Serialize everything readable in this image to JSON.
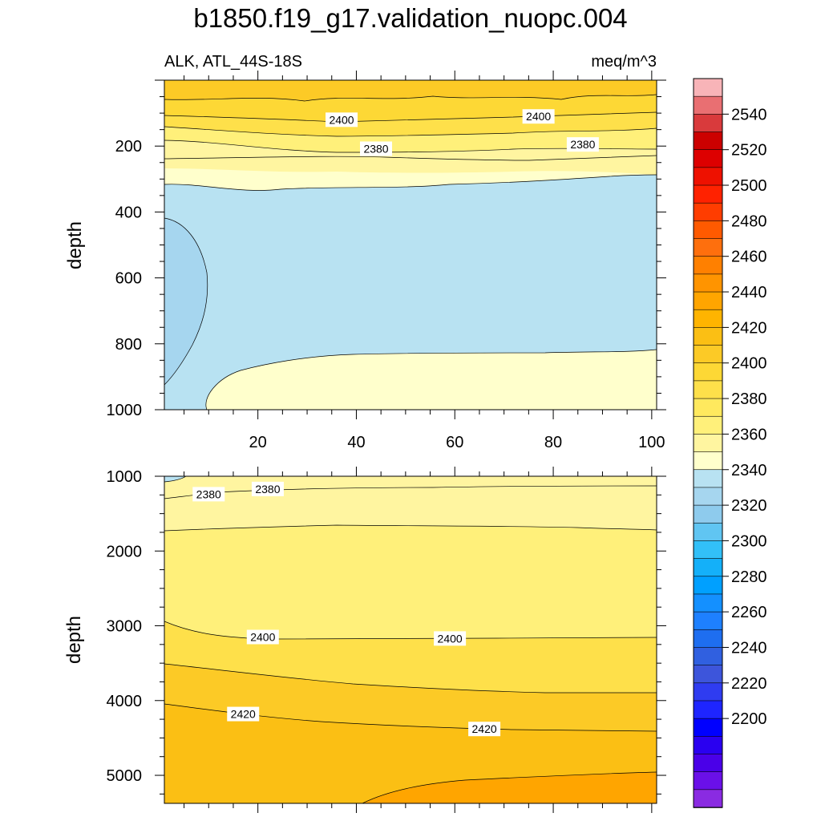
{
  "chart_data": {
    "type": "contour",
    "title": "b1850.f19_g17.validation_nuopc.004",
    "left_label": "ALK, ATL_44S-18S",
    "right_label": "meq/m^3",
    "panels": [
      {
        "ylabel": "depth",
        "xlim": [
          1,
          101
        ],
        "ylim": [
          0,
          1000
        ],
        "x_ticks": [
          "20",
          "40",
          "60",
          "80",
          "100"
        ],
        "y_ticks": [
          "200",
          "400",
          "600",
          "800",
          "1000"
        ],
        "contour_labels": [
          {
            "text": "2400",
            "x": 37,
            "y": 120
          },
          {
            "text": "2400",
            "x": 77,
            "y": 110
          },
          {
            "text": "2380",
            "x": 44,
            "y": 208
          },
          {
            "text": "2380",
            "x": 86,
            "y": 195
          }
        ]
      },
      {
        "ylabel": "depth",
        "xlim": [
          1,
          101
        ],
        "ylim": [
          1000,
          5375
        ],
        "x_ticks": [
          "",
          "",
          "",
          "",
          ""
        ],
        "y_ticks": [
          "1000",
          "2000",
          "3000",
          "4000",
          "5000"
        ],
        "contour_labels": [
          {
            "text": "2380",
            "x": 10,
            "y": 1240
          },
          {
            "text": "2380",
            "x": 22,
            "y": 1170
          },
          {
            "text": "2400",
            "x": 21,
            "y": 3150
          },
          {
            "text": "2400",
            "x": 59,
            "y": 3170
          },
          {
            "text": "2420",
            "x": 17,
            "y": 4180
          },
          {
            "text": "2420",
            "x": 66,
            "y": 4380
          }
        ]
      }
    ],
    "colorbar": {
      "tick_labels": [
        "2540",
        "2520",
        "2500",
        "2480",
        "2460",
        "2440",
        "2420",
        "2400",
        "2380",
        "2360",
        "2340",
        "2320",
        "2300",
        "2280",
        "2260",
        "2240",
        "2220",
        "2200"
      ],
      "colors_top_to_bottom": [
        "#f8b4b8",
        "#e96f72",
        "#d93a3c",
        "#cc0000",
        "#dd0000",
        "#ee1100",
        "#ff2200",
        "#ff3d00",
        "#ff5a00",
        "#fe6f0d",
        "#ff8000",
        "#ff9400",
        "#ffa500",
        "#ffb400",
        "#fbbf14",
        "#fcca26",
        "#fdd835",
        "#fee04a",
        "#ffe95e",
        "#fff07a",
        "#fff5a0",
        "#ffffcc",
        "#b8e2f2",
        "#a6d6ef",
        "#8ecbed",
        "#60c5f2",
        "#32c0f8",
        "#14b0f9",
        "#00a0ff",
        "#1490ff",
        "#1e80ff",
        "#1e6ef0",
        "#3060e0",
        "#3d55db",
        "#2f3cf0",
        "#1e25ff",
        "#0000ff",
        "#2a00f0",
        "#4a00e8",
        "#6a10e8",
        "#8a2be2"
      ]
    },
    "fill_colors": {
      "yellow_light": "#ffffcc",
      "yellow_pale": "#fff5a0",
      "yellow": "#fff07a",
      "yellow_mid": "#fee04a",
      "gold": "#fdd835",
      "gold_dark": "#fcca26",
      "orange_light": "#fbbf14",
      "orange": "#ffb400",
      "orange_deep": "#ffa500",
      "blue_light": "#b8e2f2",
      "blue": "#a6d6ef"
    }
  }
}
